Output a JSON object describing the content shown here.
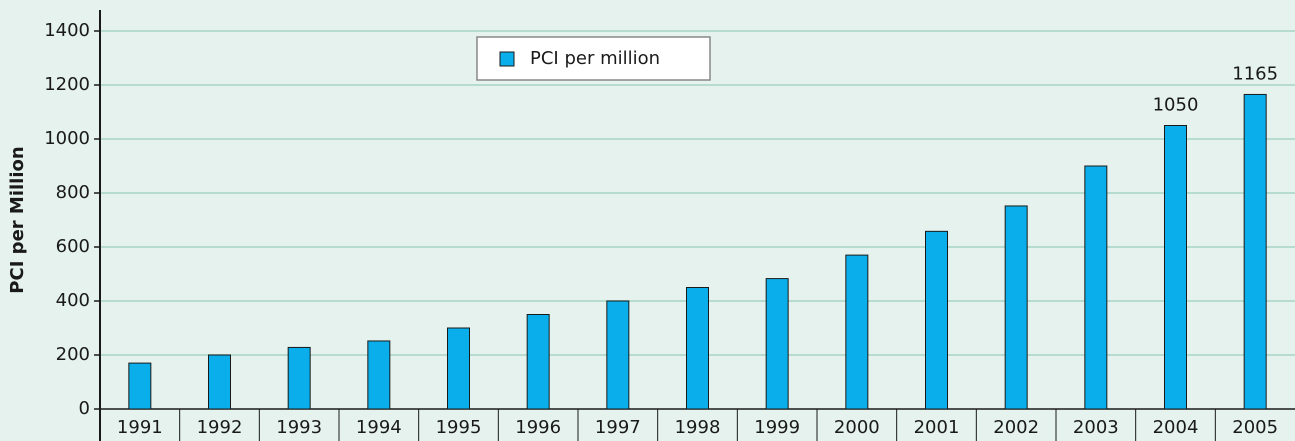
{
  "chart_data": {
    "type": "bar",
    "y_label": "PCI per Million",
    "categories": [
      "1991",
      "1992",
      "1993",
      "1994",
      "1995",
      "1996",
      "1997",
      "1998",
      "1999",
      "2000",
      "2001",
      "2002",
      "2003",
      "2004",
      "2005"
    ],
    "series": [
      {
        "name": "PCI per million",
        "color": "#0aaeea",
        "values": [
          170,
          200,
          228,
          252,
          300,
          350,
          400,
          450,
          483,
          570,
          658,
          752,
          900,
          1050,
          1165
        ],
        "value_labels": [
          null,
          null,
          null,
          null,
          null,
          null,
          null,
          null,
          null,
          null,
          null,
          null,
          null,
          "1050",
          "1165"
        ]
      }
    ],
    "ylim": [
      0,
      1400
    ],
    "yticks": [
      0,
      200,
      400,
      600,
      800,
      1000,
      1200,
      1400
    ],
    "grid": true,
    "legend": "top-center"
  }
}
